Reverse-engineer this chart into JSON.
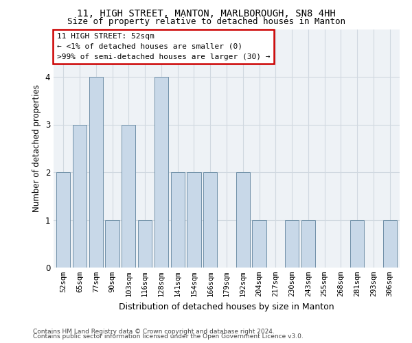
{
  "title1": "11, HIGH STREET, MANTON, MARLBOROUGH, SN8 4HH",
  "title2": "Size of property relative to detached houses in Manton",
  "xlabel": "Distribution of detached houses by size in Manton",
  "ylabel": "Number of detached properties",
  "categories": [
    "52sqm",
    "65sqm",
    "77sqm",
    "90sqm",
    "103sqm",
    "116sqm",
    "128sqm",
    "141sqm",
    "154sqm",
    "166sqm",
    "179sqm",
    "192sqm",
    "204sqm",
    "217sqm",
    "230sqm",
    "243sqm",
    "255sqm",
    "268sqm",
    "281sqm",
    "293sqm",
    "306sqm"
  ],
  "values": [
    2,
    3,
    4,
    1,
    3,
    1,
    4,
    2,
    2,
    2,
    0,
    2,
    1,
    0,
    1,
    1,
    0,
    0,
    1,
    0,
    1
  ],
  "bar_color": "#c8d8e8",
  "bar_edge_color": "#7090a8",
  "annotation_box_text": "11 HIGH STREET: 52sqm\n← <1% of detached houses are smaller (0)\n>99% of semi-detached houses are larger (30) →",
  "annotation_box_facecolor": "#ffffff",
  "annotation_box_edge_color": "#cc0000",
  "ylim": [
    0,
    5
  ],
  "yticks": [
    0,
    1,
    2,
    3,
    4
  ],
  "grid_color": "#d0d8e0",
  "background_color": "#eef2f6",
  "footer1": "Contains HM Land Registry data © Crown copyright and database right 2024.",
  "footer2": "Contains public sector information licensed under the Open Government Licence v3.0.",
  "title_fontsize": 10,
  "subtitle_fontsize": 9,
  "tick_fontsize": 7.5,
  "ylabel_fontsize": 8.5,
  "xlabel_fontsize": 9,
  "footer_fontsize": 6.5,
  "annotation_fontsize": 8
}
